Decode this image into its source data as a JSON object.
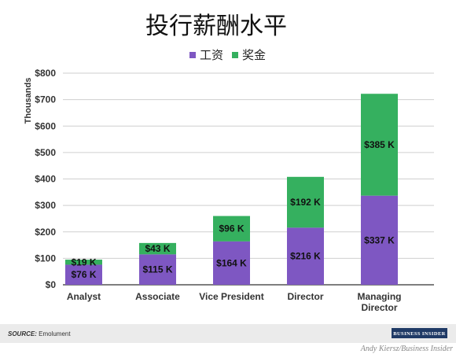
{
  "chart_data": {
    "type": "bar",
    "stacked": true,
    "title": "投行薪酬水平",
    "ylabel": "Thousands",
    "ylim": [
      0,
      800
    ],
    "yticks": [
      0,
      100,
      200,
      300,
      400,
      500,
      600,
      700,
      800
    ],
    "ytick_labels": [
      "$0",
      "$100",
      "$200",
      "$300",
      "$400",
      "$500",
      "$600",
      "$700",
      "$800"
    ],
    "grid": true,
    "legend_position": "top-center",
    "categories": [
      "Analyst",
      "Associate",
      "Vice President",
      "Director",
      "Managing Director"
    ],
    "series": [
      {
        "name": "工资",
        "color": "#7e57c2",
        "values": [
          76,
          115,
          164,
          216,
          337
        ],
        "labels": [
          "$76 K",
          "$115 K",
          "$164 K",
          "$216 K",
          "$337 K"
        ]
      },
      {
        "name": "奖金",
        "color": "#35b05f",
        "values": [
          19,
          43,
          96,
          192,
          385
        ],
        "labels": [
          "$19 K",
          "$43 K",
          "$96 K",
          "$192 K",
          "$385 K"
        ]
      }
    ]
  },
  "footer": {
    "source_prefix": "SOURCE:",
    "source_text": " Emolument",
    "logo_text": "BUSINESS INSIDER",
    "credit": "Andy Kiersz/Business Insider"
  },
  "colors": {
    "grid": "#cfcfcf",
    "baseline": "#333333",
    "footer_band": "#ebebeb",
    "logo_bg": "#1f3a66"
  }
}
